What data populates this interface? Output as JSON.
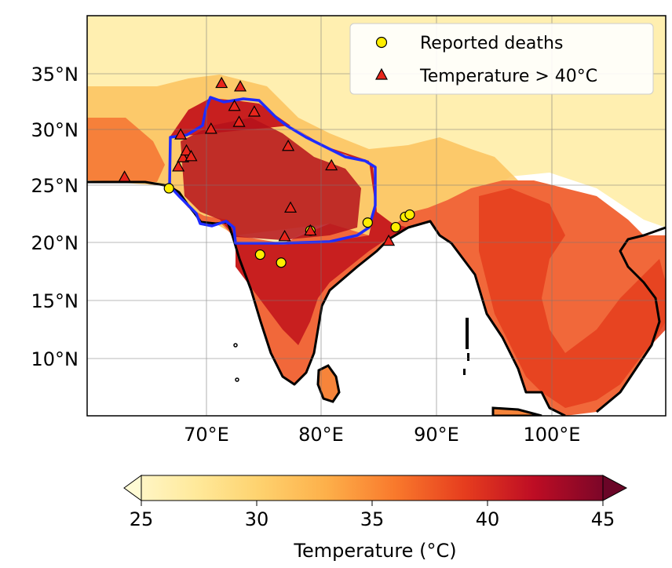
{
  "map": {
    "lon_ticks": [
      "70°E",
      "80°E",
      "90°E",
      "100°E"
    ],
    "lat_ticks": [
      "35°N",
      "30°N",
      "25°N",
      "20°N",
      "15°N",
      "10°N"
    ],
    "lon_range": [
      60,
      109.5
    ],
    "lat_range": [
      5,
      40
    ],
    "colors": {
      "ocean": "#ffffff",
      "coast": "#000000",
      "region_outline": "#1f2bff",
      "deaths_marker": "#ffee00",
      "temp_marker": "#e8261c"
    }
  },
  "legend": {
    "items": [
      {
        "label": "Reported deaths",
        "marker": "circle"
      },
      {
        "label": "Temperature > 40°C",
        "marker": "triangle"
      }
    ]
  },
  "colorbar": {
    "label": "Temperature (°C)",
    "ticks": [
      "25",
      "30",
      "35",
      "40",
      "45"
    ],
    "min": 25,
    "max": 45,
    "extend": "both"
  },
  "chart_data": {
    "type": "scatter",
    "series": [
      {
        "name": "Reported deaths",
        "points": [
          {
            "lon": 67.0,
            "lat": 24.9
          },
          {
            "lon": 74.8,
            "lat": 19.1
          },
          {
            "lon": 76.6,
            "lat": 18.4
          },
          {
            "lon": 79.1,
            "lat": 21.2
          },
          {
            "lon": 84.0,
            "lat": 21.9
          },
          {
            "lon": 86.4,
            "lat": 21.5
          },
          {
            "lon": 87.2,
            "lat": 22.4
          },
          {
            "lon": 87.6,
            "lat": 22.6
          }
        ]
      },
      {
        "name": "Temperature > 40°C",
        "points": [
          {
            "lon": 63.2,
            "lat": 25.9
          },
          {
            "lon": 67.8,
            "lat": 26.8
          },
          {
            "lon": 68.0,
            "lat": 29.6
          },
          {
            "lon": 68.2,
            "lat": 27.6
          },
          {
            "lon": 68.5,
            "lat": 28.2
          },
          {
            "lon": 68.9,
            "lat": 27.7
          },
          {
            "lon": 70.6,
            "lat": 30.1
          },
          {
            "lon": 71.5,
            "lat": 34.1
          },
          {
            "lon": 72.6,
            "lat": 32.1
          },
          {
            "lon": 73.0,
            "lat": 30.7
          },
          {
            "lon": 73.1,
            "lat": 33.8
          },
          {
            "lon": 74.3,
            "lat": 31.6
          },
          {
            "lon": 77.2,
            "lat": 28.6
          },
          {
            "lon": 77.4,
            "lat": 23.2
          },
          {
            "lon": 76.9,
            "lat": 20.7
          },
          {
            "lon": 79.1,
            "lat": 21.2
          },
          {
            "lon": 80.9,
            "lat": 26.9
          },
          {
            "lon": 85.8,
            "lat": 20.3
          }
        ]
      }
    ]
  }
}
